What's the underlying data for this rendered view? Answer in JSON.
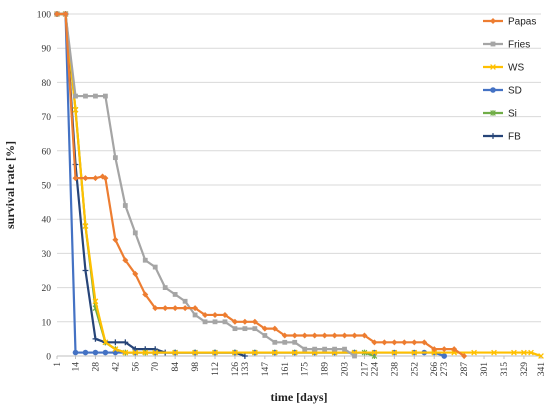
{
  "chart_data": {
    "type": "line",
    "title": "",
    "xlabel": "time [days]",
    "ylabel": "survival rate [%]",
    "ylim": [
      0,
      100
    ],
    "xlim": [
      1,
      341
    ],
    "yticks": [
      0,
      10,
      20,
      30,
      40,
      50,
      60,
      70,
      80,
      90,
      100
    ],
    "xticks": [
      1,
      14,
      28,
      42,
      56,
      70,
      84,
      98,
      112,
      126,
      133,
      147,
      161,
      175,
      189,
      203,
      217,
      224,
      238,
      252,
      266,
      273,
      287,
      301,
      315,
      329,
      341
    ],
    "grid": "horizontal",
    "legend_position": "right",
    "series": [
      {
        "name": "Papas",
        "color": "#ED7D31",
        "marker": "diamond",
        "points": [
          [
            1,
            100
          ],
          [
            7,
            100
          ],
          [
            14,
            52
          ],
          [
            21,
            52
          ],
          [
            28,
            52
          ],
          [
            33,
            52.5
          ],
          [
            35,
            52
          ],
          [
            42,
            34
          ],
          [
            49,
            28
          ],
          [
            56,
            24
          ],
          [
            63,
            18
          ],
          [
            70,
            14
          ],
          [
            77,
            14
          ],
          [
            84,
            14
          ],
          [
            91,
            14
          ],
          [
            98,
            14
          ],
          [
            105,
            12
          ],
          [
            112,
            12
          ],
          [
            119,
            12
          ],
          [
            126,
            10
          ],
          [
            133,
            10
          ],
          [
            140,
            10
          ],
          [
            147,
            8
          ],
          [
            154,
            8
          ],
          [
            161,
            6
          ],
          [
            168,
            6
          ],
          [
            175,
            6
          ],
          [
            182,
            6
          ],
          [
            189,
            6
          ],
          [
            196,
            6
          ],
          [
            203,
            6
          ],
          [
            210,
            6
          ],
          [
            217,
            6
          ],
          [
            224,
            4
          ],
          [
            231,
            4
          ],
          [
            238,
            4
          ],
          [
            245,
            4
          ],
          [
            252,
            4
          ],
          [
            259,
            4
          ],
          [
            266,
            2
          ],
          [
            273,
            2
          ],
          [
            280,
            2
          ],
          [
            287,
            0
          ]
        ]
      },
      {
        "name": "Fries",
        "color": "#A5A5A5",
        "marker": "square",
        "points": [
          [
            1,
            100
          ],
          [
            7,
            100
          ],
          [
            14,
            76
          ],
          [
            21,
            76
          ],
          [
            28,
            76
          ],
          [
            35,
            76
          ],
          [
            42,
            58
          ],
          [
            49,
            44
          ],
          [
            56,
            36
          ],
          [
            63,
            28
          ],
          [
            70,
            26
          ],
          [
            77,
            20
          ],
          [
            84,
            18
          ],
          [
            91,
            16
          ],
          [
            98,
            12
          ],
          [
            105,
            10
          ],
          [
            112,
            10
          ],
          [
            119,
            10
          ],
          [
            126,
            8
          ],
          [
            133,
            8
          ],
          [
            140,
            8
          ],
          [
            147,
            6
          ],
          [
            154,
            4
          ],
          [
            161,
            4
          ],
          [
            168,
            4
          ],
          [
            175,
            2
          ],
          [
            182,
            2
          ],
          [
            189,
            2
          ],
          [
            196,
            2
          ],
          [
            203,
            2
          ],
          [
            210,
            0
          ]
        ]
      },
      {
        "name": "WS",
        "color": "#FFC000",
        "marker": "x",
        "points": [
          [
            1,
            100
          ],
          [
            7,
            100
          ],
          [
            14,
            72
          ],
          [
            21,
            38
          ],
          [
            28,
            16
          ],
          [
            35,
            4
          ],
          [
            42,
            2
          ],
          [
            49,
            1
          ],
          [
            56,
            1
          ],
          [
            63,
            1
          ],
          [
            70,
            1
          ],
          [
            84,
            1
          ],
          [
            98,
            1
          ],
          [
            112,
            1
          ],
          [
            126,
            1
          ],
          [
            140,
            1
          ],
          [
            154,
            1
          ],
          [
            168,
            1
          ],
          [
            182,
            1
          ],
          [
            196,
            1
          ],
          [
            210,
            1
          ],
          [
            224,
            1
          ],
          [
            238,
            1
          ],
          [
            252,
            1
          ],
          [
            266,
            1
          ],
          [
            280,
            1
          ],
          [
            294,
            1
          ],
          [
            308,
            1
          ],
          [
            322,
            1
          ],
          [
            329,
            1
          ],
          [
            334,
            1
          ],
          [
            341,
            0
          ]
        ]
      },
      {
        "name": "SD",
        "color": "#4472C4",
        "marker": "circle",
        "points": [
          [
            1,
            100
          ],
          [
            7,
            100
          ],
          [
            14,
            1
          ],
          [
            21,
            1
          ],
          [
            28,
            1
          ],
          [
            35,
            1
          ],
          [
            42,
            1
          ],
          [
            56,
            1
          ],
          [
            70,
            1
          ],
          [
            84,
            1
          ],
          [
            98,
            1
          ],
          [
            112,
            1
          ],
          [
            126,
            1
          ],
          [
            140,
            1
          ],
          [
            154,
            1
          ],
          [
            168,
            1
          ],
          [
            182,
            1
          ],
          [
            196,
            1
          ],
          [
            210,
            1
          ],
          [
            224,
            1
          ],
          [
            238,
            1
          ],
          [
            252,
            1
          ],
          [
            259,
            1
          ],
          [
            266,
            1
          ],
          [
            273,
            0
          ]
        ]
      },
      {
        "name": "Si",
        "color": "#70AD47",
        "marker": "star",
        "points": [
          [
            1,
            100
          ],
          [
            7,
            100
          ],
          [
            14,
            72
          ],
          [
            21,
            38
          ],
          [
            28,
            14
          ],
          [
            35,
            4
          ],
          [
            42,
            2
          ],
          [
            49,
            1
          ],
          [
            56,
            1
          ],
          [
            63,
            1
          ],
          [
            70,
            1
          ],
          [
            84,
            1
          ],
          [
            98,
            1
          ],
          [
            112,
            1
          ],
          [
            126,
            1
          ],
          [
            140,
            1
          ],
          [
            154,
            1
          ],
          [
            168,
            1
          ],
          [
            182,
            1
          ],
          [
            196,
            1
          ],
          [
            210,
            1
          ],
          [
            217,
            1
          ],
          [
            224,
            0
          ]
        ]
      },
      {
        "name": "FB",
        "color": "#264478",
        "marker": "plus",
        "points": [
          [
            1,
            100
          ],
          [
            7,
            100
          ],
          [
            14,
            56
          ],
          [
            21,
            25
          ],
          [
            28,
            5
          ],
          [
            35,
            4
          ],
          [
            42,
            4
          ],
          [
            49,
            4
          ],
          [
            56,
            2
          ],
          [
            63,
            2
          ],
          [
            70,
            2
          ],
          [
            77,
            1
          ],
          [
            84,
            1
          ],
          [
            98,
            1
          ],
          [
            112,
            1
          ],
          [
            126,
            1
          ],
          [
            133,
            0
          ]
        ]
      }
    ]
  }
}
